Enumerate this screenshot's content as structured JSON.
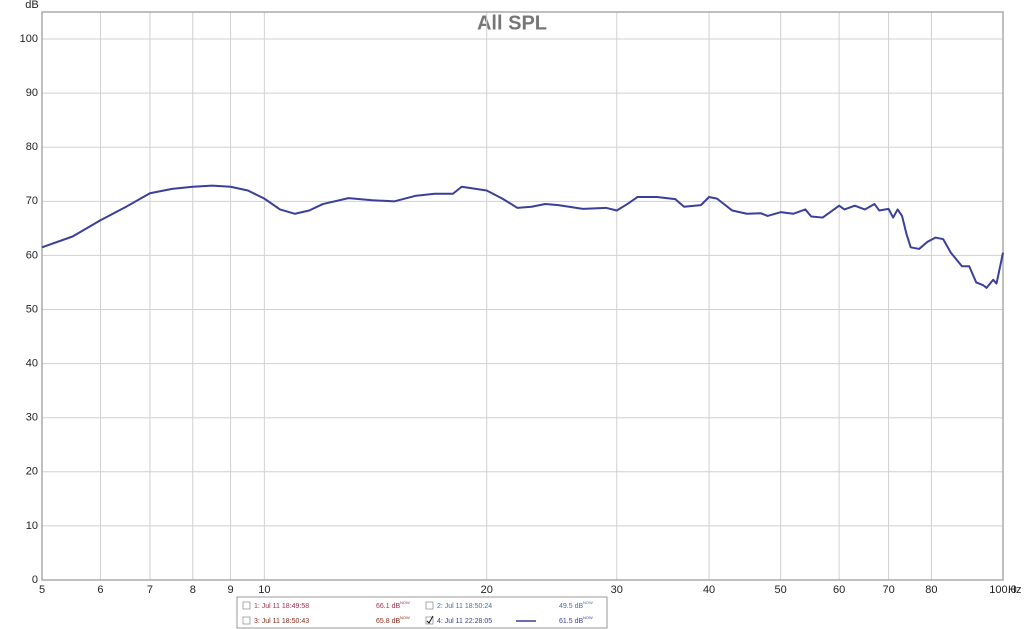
{
  "chart_data": {
    "type": "line",
    "title": "All SPL",
    "y_label": "dB",
    "x_label": "Hz",
    "log_x": true,
    "grid": true,
    "xlim": [
      5,
      100
    ],
    "ylim": [
      0,
      105
    ],
    "xticks": [
      5,
      6,
      7,
      8,
      9,
      10,
      20,
      30,
      40,
      50,
      60,
      70,
      80,
      {
        "value": 100,
        "label": "100.0"
      }
    ],
    "yticks": [
      0,
      10,
      20,
      30,
      40,
      50,
      60,
      70,
      80,
      90,
      100
    ],
    "x": [
      5,
      5.5,
      6,
      6.5,
      7,
      7.5,
      8,
      8.5,
      9,
      9.5,
      10,
      10.5,
      11,
      11.5,
      12,
      13,
      14,
      15,
      16,
      17,
      18,
      18.5,
      20,
      21,
      22,
      23,
      24,
      25,
      27,
      29,
      30,
      31,
      32,
      34,
      36,
      37,
      39,
      40,
      41,
      43,
      45,
      47,
      48,
      50,
      52,
      54,
      55,
      57,
      60,
      61,
      63,
      65,
      67,
      68,
      70,
      71,
      72,
      73,
      74,
      75,
      77,
      79,
      81,
      83,
      85,
      88,
      90,
      92,
      94,
      95,
      97,
      98,
      100
    ],
    "series": [
      {
        "color": "#3a3f9a",
        "values": [
          61.5,
          63.5,
          66.5,
          69,
          71.5,
          72.3,
          72.7,
          72.9,
          72.7,
          72,
          70.5,
          68.5,
          67.7,
          68.3,
          69.5,
          70.6,
          70.2,
          70,
          71,
          71.4,
          71.4,
          72.7,
          72,
          70.5,
          68.8,
          69,
          69.5,
          69.3,
          68.6,
          68.8,
          68.3,
          69.5,
          70.8,
          70.8,
          70.4,
          69,
          69.3,
          70.8,
          70.5,
          68.3,
          67.7,
          67.8,
          67.3,
          68,
          67.7,
          68.5,
          67.2,
          67,
          69.2,
          68.5,
          69.2,
          68.5,
          69.5,
          68.3,
          68.6,
          67,
          68.5,
          67.3,
          64,
          61.5,
          61.2,
          62.5,
          63.3,
          63,
          60.5,
          58,
          58,
          55,
          54.5,
          54,
          55.5,
          54.8,
          60.5
        ]
      }
    ],
    "legend_entries": [
      {
        "label": "1: Jul 11 18:49:58",
        "reading": "66.1 dB",
        "reading_note": "NOW",
        "checked": false,
        "color": "#a0304c"
      },
      {
        "label": "2: Jul 11 18:50:24",
        "reading": "49.5 dB",
        "reading_note": "NOW",
        "checked": false,
        "color": "#4a6fa8"
      },
      {
        "label": "3: Jul 11 18:50:43",
        "reading": "65.8 dB",
        "reading_note": "NOW",
        "checked": false,
        "color": "#8a2a1a"
      },
      {
        "label": "4: Jul 11 22:28:05",
        "reading": "61.5 dB",
        "reading_note": "NOW",
        "checked": true,
        "color": "#3a3f9a"
      }
    ]
  }
}
